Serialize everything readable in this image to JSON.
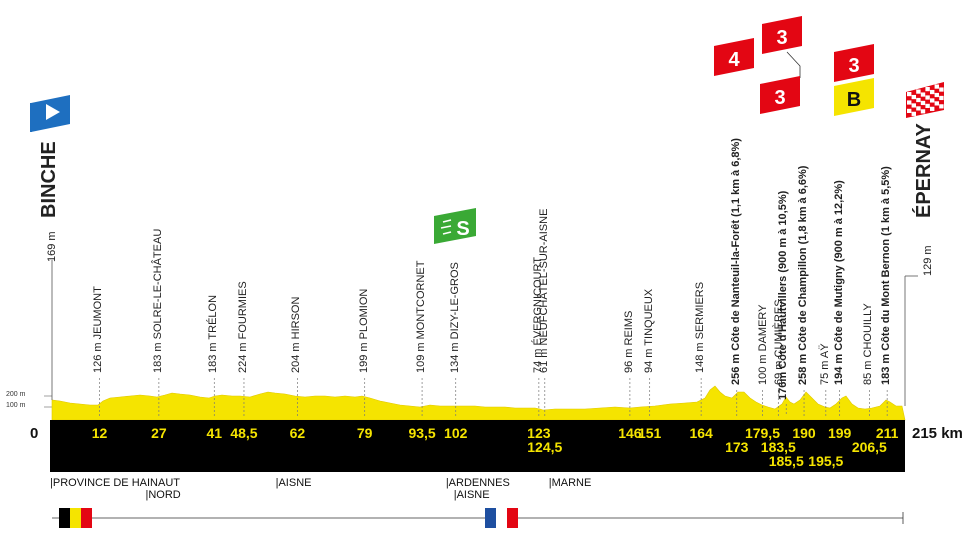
{
  "start": {
    "name": "BINCHE",
    "altitude": "169 m",
    "km": "0"
  },
  "finish": {
    "name": "ÉPERNAY",
    "altitude": "129 m",
    "km": "215 km"
  },
  "scale": {
    "alt_200": "200 m",
    "alt_100": "100 m"
  },
  "waypoints": [
    {
      "label": "126 m JEUMONT",
      "km": "12",
      "km_value": 12
    },
    {
      "label": "183 m SOLRE-LE-CHÂTEAU",
      "km": "27",
      "km_value": 27
    },
    {
      "label": "183 m TRÉLON",
      "km": "41",
      "km_value": 41
    },
    {
      "label": "224 m FOURMIES",
      "km": "48,5",
      "km_value": 48.5
    },
    {
      "label": "204 m HIRSON",
      "km": "62",
      "km_value": 62
    },
    {
      "label": "199 m PLOMION",
      "km": "79",
      "km_value": 79
    },
    {
      "label": "109 m MONTCORNET",
      "km": "93,5",
      "km_value": 93.5
    },
    {
      "label": "134 m DIZY-LE-GROS",
      "km": "102",
      "km_value": 102
    },
    {
      "label": "74 m ÉVERGNICOURT",
      "km": "123",
      "km_value": 123
    },
    {
      "label": "61 m NEUFCHÂTEL-SUR-AISNE",
      "km": "124,5",
      "km_value": 124.5
    },
    {
      "label": "96 m REIMS",
      "km": "146",
      "km_value": 146
    },
    {
      "label": "94 m TINQUEUX",
      "km": "151",
      "km_value": 151
    },
    {
      "label": "148 m SERMIERS",
      "km": "164",
      "km_value": 164
    },
    {
      "label": "256 m Côte de Nanteuil-la-Forêt (1,1 km à 6,8%)",
      "km": "173",
      "km_value": 173,
      "climb": true
    },
    {
      "label": "100 m DAMERY",
      "km": "179,5",
      "km_value": 179.5
    },
    {
      "label": "69 m CUMIÈRES",
      "km": "183,5",
      "km_value": 183.5
    },
    {
      "label": "176m Côte d'Hautvillers (900 m à 10,5%)",
      "km": "185,5",
      "km_value": 185.5,
      "climb": true
    },
    {
      "label": "258 m Côte de Champillon (1,8 km à 6,6%)",
      "km": "190",
      "km_value": 190,
      "climb": true
    },
    {
      "label": "75 m AŸ",
      "km": "195,5",
      "km_value": 195.5
    },
    {
      "label": "194 m Côte de Mutigny (900 m à 12,2%)",
      "km": "199",
      "km_value": 199,
      "climb": true
    },
    {
      "label": "85 m CHOUILLY",
      "km": "206,5",
      "km_value": 206.5
    },
    {
      "label": "183 m Côte du Mont Bernon (1 km à 5,5%)",
      "km": "211",
      "km_value": 211,
      "climb": true
    }
  ],
  "badges": {
    "cat4": "4",
    "cat3_a": "3",
    "cat3_b": "3",
    "cat3_c": "3",
    "bonus": "B",
    "sprint": "S"
  },
  "regions": [
    {
      "name": "PROVINCE DE HAINAUT",
      "km_value": 0
    },
    {
      "name": "NORD",
      "km_value": 12
    },
    {
      "name": "AISNE",
      "km_value": 57
    },
    {
      "name": "ARDENNES",
      "km_value": 100
    },
    {
      "name": "AISNE",
      "km_value": 102
    },
    {
      "name": "MARNE",
      "km_value": 126
    }
  ],
  "colors": {
    "profile": "#f5e400",
    "band": "#000000",
    "start_flag": "#1e6fc0",
    "sprint": "#3aa935",
    "climb": "#e30613",
    "bonus": "#f5e400"
  }
}
